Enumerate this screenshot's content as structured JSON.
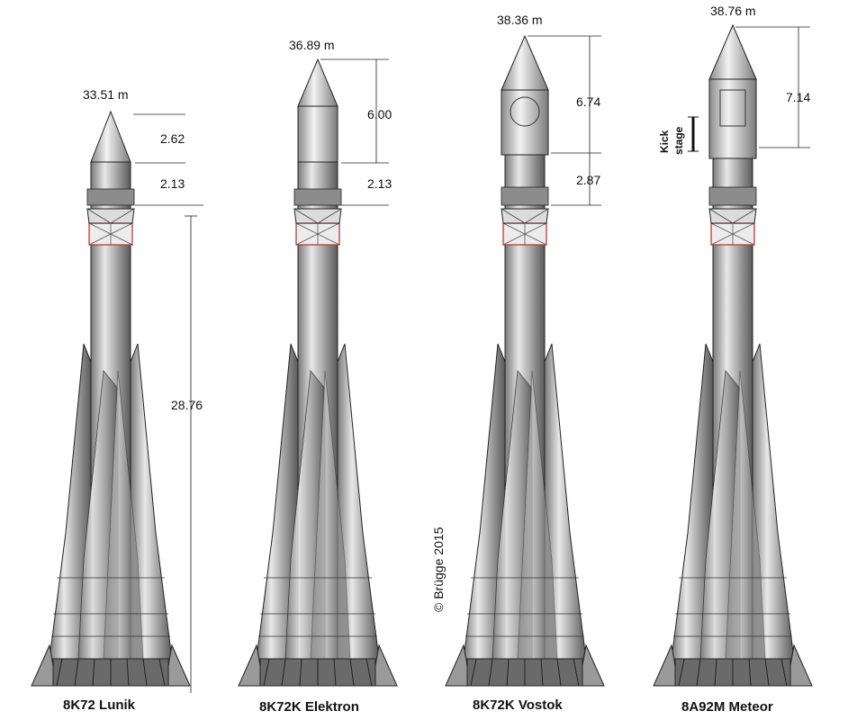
{
  "copyright": "© Brügge 2015",
  "kick_label": {
    "line1": "Kick",
    "line2": "stage"
  },
  "rockets": [
    {
      "name": "8K72 Lunik",
      "total_height": "33.51 m",
      "dims": [
        {
          "label": "2.62"
        },
        {
          "label": "2.13"
        },
        {
          "label": "28.76"
        }
      ]
    },
    {
      "name": "8K72K Elektron",
      "total_height": "36.89 m",
      "dims": [
        {
          "label": "6.00"
        },
        {
          "label": "2.13"
        }
      ]
    },
    {
      "name": "8K72K Vostok",
      "total_height": "38.36 m",
      "dims": [
        {
          "label": "6.74"
        },
        {
          "label": "2.87"
        }
      ]
    },
    {
      "name": "8A92M Meteor",
      "total_height": "38.76 m",
      "dims": [
        {
          "label": "7.14"
        }
      ]
    }
  ],
  "colors": {
    "body": "#b8b8b8",
    "outline": "#222222",
    "interstage": "#d04040"
  }
}
